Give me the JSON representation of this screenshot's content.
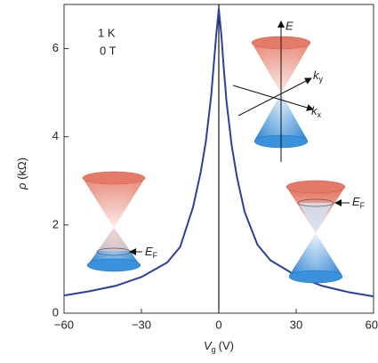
{
  "chart_data": {
    "type": "line",
    "annotations": [
      "1 K",
      "0 T"
    ],
    "y_label": {
      "symbol": "ρ",
      "unit": "(kΩ)"
    },
    "x_label": {
      "symbol": "V",
      "subscript": "g",
      "unit": "(V)"
    },
    "inset_axes": {
      "E": "E",
      "ky": {
        "symbol": "k",
        "subscript": "y"
      },
      "kx": {
        "symbol": "k",
        "subscript": "x"
      }
    },
    "fermi_labels": [
      {
        "symbol": "E",
        "subscript": "F"
      },
      {
        "symbol": "E",
        "subscript": "F"
      }
    ],
    "xlim": [
      -60,
      60
    ],
    "ylim": [
      0,
      7
    ],
    "xticks": [
      {
        "value": -60,
        "label": "−60"
      },
      {
        "value": -30,
        "label": "−30"
      },
      0,
      30,
      60
    ],
    "yticks": [
      0,
      2,
      4,
      6
    ],
    "series": [
      {
        "color": "#2b3f9e",
        "x": [
          -60,
          -50,
          -40,
          -30,
          -20,
          -15,
          -10,
          -7,
          -5,
          -3,
          -2,
          -1,
          0,
          1,
          2,
          3,
          5,
          7,
          10,
          15,
          20,
          30,
          40,
          50,
          60
        ],
        "values": [
          0.4,
          0.5,
          0.62,
          0.82,
          1.15,
          1.5,
          2.4,
          3.2,
          3.9,
          4.9,
          5.6,
          6.3,
          6.9,
          6.3,
          5.5,
          4.8,
          3.8,
          3.1,
          2.3,
          1.55,
          1.2,
          0.85,
          0.62,
          0.48,
          0.38
        ]
      }
    ]
  }
}
